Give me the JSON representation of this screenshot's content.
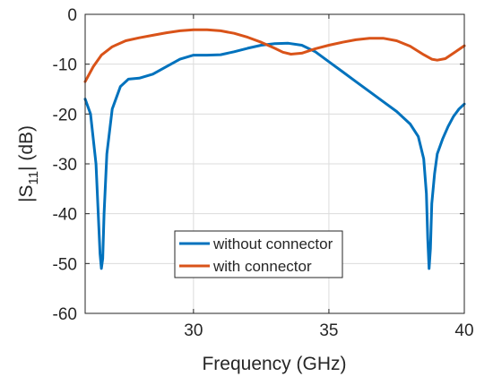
{
  "chart_data": {
    "type": "line",
    "title": "",
    "xlabel": "Frequency (GHz)",
    "ylabel": {
      "prefix": "|S",
      "subscript": "11",
      "suffix": "| (dB)"
    },
    "xlim": [
      26,
      40
    ],
    "ylim": [
      -60,
      0
    ],
    "xticks": [
      30,
      35,
      40
    ],
    "yticks": [
      0,
      -10,
      -20,
      -30,
      -40,
      -50,
      -60
    ],
    "xtick_labels": [
      "30",
      "35",
      "40"
    ],
    "ytick_labels": [
      "0",
      "-10",
      "-20",
      "-30",
      "-40",
      "-50",
      "-60"
    ],
    "grid": true,
    "legend_position": "lower-center",
    "series": [
      {
        "name": "without connector",
        "color": "#0072BD",
        "x": [
          26.0,
          26.2,
          26.4,
          26.5,
          26.55,
          26.6,
          26.65,
          26.7,
          26.8,
          27.0,
          27.3,
          27.6,
          28.0,
          28.5,
          29.0,
          29.5,
          30.0,
          30.5,
          31.0,
          31.5,
          32.0,
          32.5,
          33.0,
          33.5,
          34.0,
          34.5,
          35.0,
          35.5,
          36.0,
          36.5,
          37.0,
          37.5,
          38.0,
          38.3,
          38.5,
          38.6,
          38.65,
          38.7,
          38.75,
          38.8,
          38.9,
          39.0,
          39.2,
          39.4,
          39.6,
          39.8,
          40.0
        ],
        "values": [
          -17,
          -20,
          -30,
          -42,
          -48,
          -51,
          -49,
          -40,
          -28,
          -19,
          -14.5,
          -13,
          -12.8,
          -12,
          -10.5,
          -9,
          -8.2,
          -8.2,
          -8.1,
          -7.5,
          -6.8,
          -6.2,
          -5.9,
          -5.8,
          -6.2,
          -7.5,
          -9.5,
          -11.5,
          -13.5,
          -15.5,
          -17.5,
          -19.5,
          -22,
          -24.5,
          -29,
          -36,
          -45,
          -51,
          -47,
          -38,
          -32,
          -28,
          -25,
          -22.5,
          -20.5,
          -19,
          -18
        ]
      },
      {
        "name": "with connector",
        "color": "#D95319",
        "x": [
          26.0,
          26.3,
          26.6,
          27.0,
          27.5,
          28.0,
          28.5,
          29.0,
          29.5,
          30.0,
          30.5,
          31.0,
          31.5,
          32.0,
          32.5,
          33.0,
          33.3,
          33.6,
          34.0,
          34.5,
          35.0,
          35.5,
          36.0,
          36.5,
          37.0,
          37.5,
          38.0,
          38.5,
          38.8,
          39.0,
          39.3,
          39.6,
          40.0
        ],
        "values": [
          -13.5,
          -10.5,
          -8.2,
          -6.5,
          -5.3,
          -4.7,
          -4.2,
          -3.7,
          -3.3,
          -3.1,
          -3.1,
          -3.3,
          -3.8,
          -4.6,
          -5.6,
          -6.8,
          -7.6,
          -8.0,
          -7.8,
          -6.9,
          -6.2,
          -5.6,
          -5.1,
          -4.8,
          -4.8,
          -5.3,
          -6.4,
          -8.1,
          -9.0,
          -9.2,
          -8.9,
          -7.8,
          -6.3
        ]
      }
    ]
  }
}
